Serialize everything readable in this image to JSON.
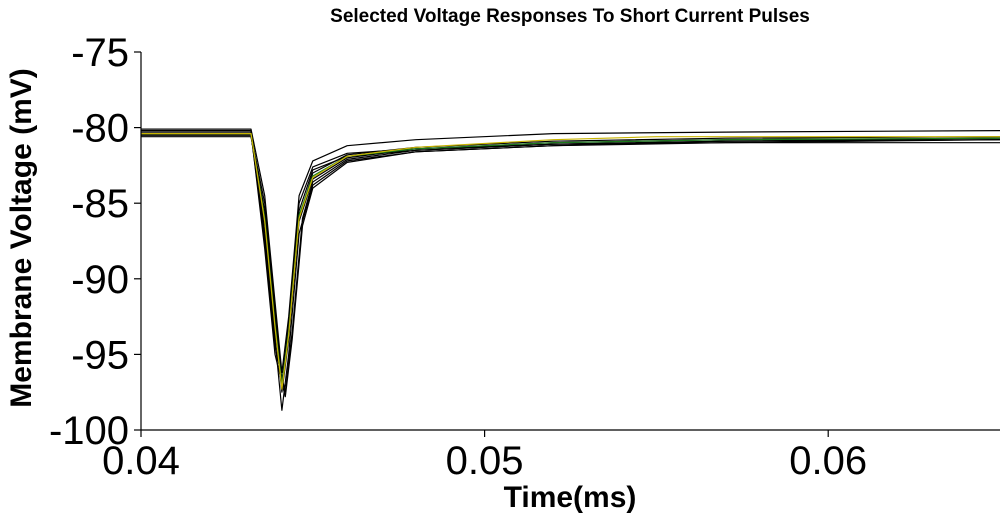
{
  "chart_data": {
    "type": "line",
    "title": "Selected Voltage Responses To Short Current Pulses",
    "xlabel": "Time(ms)",
    "ylabel": "Membrane Voltage (mV)",
    "xlim": [
      0.04,
      0.065
    ],
    "ylim": [
      -100,
      -75
    ],
    "xticks": [
      0.04,
      0.05,
      0.06
    ],
    "xtick_labels": [
      "0.04",
      "0.05",
      "0.06"
    ],
    "yticks": [
      -100,
      -95,
      -90,
      -85,
      -80,
      -75
    ],
    "ytick_labels": [
      "-100",
      "-95",
      "-90",
      "-85",
      "-80",
      "-75"
    ],
    "grid": false,
    "legend": "none",
    "series": [
      {
        "color": "#000000",
        "values": [
          [
            0.04,
            -80.2
          ],
          [
            0.0432,
            -80.2
          ],
          [
            0.0436,
            -86
          ],
          [
            0.0439,
            -93
          ],
          [
            0.0441,
            -97.5
          ],
          [
            0.0443,
            -94
          ],
          [
            0.0446,
            -86
          ],
          [
            0.045,
            -83
          ],
          [
            0.046,
            -81.8
          ],
          [
            0.048,
            -81.3
          ],
          [
            0.052,
            -80.9
          ],
          [
            0.057,
            -80.7
          ],
          [
            0.065,
            -80.6
          ]
        ]
      },
      {
        "color": "#000000",
        "values": [
          [
            0.04,
            -80.4
          ],
          [
            0.0432,
            -80.4
          ],
          [
            0.0436,
            -87
          ],
          [
            0.0439,
            -94
          ],
          [
            0.0441,
            -98.7
          ],
          [
            0.0443,
            -95
          ],
          [
            0.0446,
            -87
          ],
          [
            0.045,
            -83.8
          ],
          [
            0.046,
            -82.2
          ],
          [
            0.048,
            -81.6
          ],
          [
            0.052,
            -81.2
          ],
          [
            0.057,
            -81
          ],
          [
            0.065,
            -80.8
          ]
        ]
      },
      {
        "color": "#000000",
        "values": [
          [
            0.04,
            -80.6
          ],
          [
            0.0432,
            -80.6
          ],
          [
            0.0436,
            -85.5
          ],
          [
            0.0439,
            -92.5
          ],
          [
            0.0441,
            -97
          ],
          [
            0.0443,
            -93.5
          ],
          [
            0.0446,
            -85.5
          ],
          [
            0.045,
            -82.8
          ],
          [
            0.046,
            -81.9
          ],
          [
            0.048,
            -81.5
          ],
          [
            0.052,
            -81.1
          ],
          [
            0.057,
            -80.9
          ],
          [
            0.065,
            -80.8
          ]
        ]
      },
      {
        "color": "#000000",
        "values": [
          [
            0.04,
            -80.3
          ],
          [
            0.0432,
            -80.3
          ],
          [
            0.0436,
            -88
          ],
          [
            0.0439,
            -95
          ],
          [
            0.0442,
            -97.8
          ],
          [
            0.0444,
            -94
          ],
          [
            0.0447,
            -86.5
          ],
          [
            0.045,
            -84
          ],
          [
            0.046,
            -82.3
          ],
          [
            0.048,
            -81.6
          ],
          [
            0.052,
            -81.2
          ],
          [
            0.057,
            -80.9
          ],
          [
            0.065,
            -80.7
          ]
        ]
      },
      {
        "color": "#000000",
        "values": [
          [
            0.04,
            -80.5
          ],
          [
            0.0432,
            -80.5
          ],
          [
            0.0436,
            -86.5
          ],
          [
            0.0439,
            -93.5
          ],
          [
            0.0441,
            -97.2
          ],
          [
            0.0443,
            -93.8
          ],
          [
            0.0446,
            -86.2
          ],
          [
            0.045,
            -83.4
          ],
          [
            0.046,
            -82
          ],
          [
            0.048,
            -81.4
          ],
          [
            0.052,
            -81
          ],
          [
            0.057,
            -80.8
          ],
          [
            0.065,
            -80.7
          ]
        ]
      },
      {
        "color": "#000000",
        "values": [
          [
            0.04,
            -80.1
          ],
          [
            0.0432,
            -80.1
          ],
          [
            0.0436,
            -84.5
          ],
          [
            0.0439,
            -91.5
          ],
          [
            0.0441,
            -96.2
          ],
          [
            0.0443,
            -92.5
          ],
          [
            0.0446,
            -84.5
          ],
          [
            0.045,
            -82.2
          ],
          [
            0.046,
            -81.2
          ],
          [
            0.048,
            -80.8
          ],
          [
            0.052,
            -80.4
          ],
          [
            0.057,
            -80.3
          ],
          [
            0.065,
            -80.2
          ]
        ]
      },
      {
        "color": "#000000",
        "values": [
          [
            0.04,
            -80.4
          ],
          [
            0.0432,
            -80.4
          ],
          [
            0.0436,
            -87.5
          ],
          [
            0.0439,
            -94.5
          ],
          [
            0.0442,
            -97.5
          ],
          [
            0.0444,
            -93.5
          ],
          [
            0.0447,
            -86
          ],
          [
            0.045,
            -83.6
          ],
          [
            0.046,
            -82.1
          ],
          [
            0.048,
            -81.5
          ],
          [
            0.052,
            -81.1
          ],
          [
            0.057,
            -80.9
          ],
          [
            0.065,
            -80.8
          ]
        ]
      },
      {
        "color": "#000000",
        "values": [
          [
            0.04,
            -80.5
          ],
          [
            0.0432,
            -80.5
          ],
          [
            0.0436,
            -85
          ],
          [
            0.0439,
            -92
          ],
          [
            0.0441,
            -96.8
          ],
          [
            0.0443,
            -93
          ],
          [
            0.0446,
            -85
          ],
          [
            0.045,
            -82.6
          ],
          [
            0.046,
            -81.7
          ],
          [
            0.048,
            -81.4
          ],
          [
            0.052,
            -81.1
          ],
          [
            0.057,
            -81
          ],
          [
            0.065,
            -81
          ]
        ]
      },
      {
        "color": "#1a7a1a",
        "values": [
          [
            0.04,
            -80.4
          ],
          [
            0.0432,
            -80.4
          ],
          [
            0.0436,
            -86
          ],
          [
            0.0439,
            -93
          ],
          [
            0.0441,
            -97
          ],
          [
            0.0443,
            -93.5
          ],
          [
            0.0446,
            -85.8
          ],
          [
            0.045,
            -83.2
          ],
          [
            0.046,
            -81.9
          ],
          [
            0.048,
            -81.4
          ],
          [
            0.052,
            -81
          ],
          [
            0.057,
            -80.8
          ],
          [
            0.065,
            -80.7
          ]
        ]
      },
      {
        "color": "#c8b400",
        "values": [
          [
            0.04,
            -80.4
          ],
          [
            0.0432,
            -80.4
          ],
          [
            0.0436,
            -86.2
          ],
          [
            0.0439,
            -93.2
          ],
          [
            0.0441,
            -97.3
          ],
          [
            0.0443,
            -93.7
          ],
          [
            0.0446,
            -86
          ],
          [
            0.045,
            -83.3
          ],
          [
            0.046,
            -81.9
          ],
          [
            0.048,
            -81.3
          ],
          [
            0.052,
            -80.8
          ],
          [
            0.055,
            -80.6
          ],
          [
            0.057,
            -80.6
          ],
          [
            0.065,
            -80.6
          ]
        ]
      }
    ]
  }
}
